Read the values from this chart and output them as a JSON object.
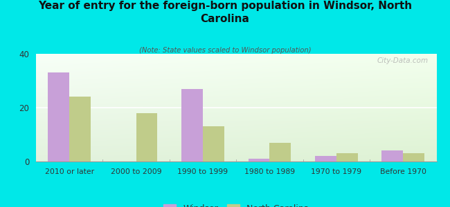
{
  "title": "Year of entry for the foreign-born population in Windsor, North\nCarolina",
  "subtitle": "(Note: State values scaled to Windsor population)",
  "categories": [
    "2010 or later",
    "2000 to 2009",
    "1990 to 1999",
    "1980 to 1989",
    "1970 to 1979",
    "Before 1970"
  ],
  "windsor_values": [
    33,
    0,
    27,
    1,
    2,
    4
  ],
  "nc_values": [
    24,
    18,
    13,
    7,
    3,
    3
  ],
  "windsor_color": "#c8a0d8",
  "nc_color": "#c0cc8a",
  "background_color": "#00e8e8",
  "ylim": [
    0,
    40
  ],
  "yticks": [
    0,
    20,
    40
  ],
  "bar_width": 0.32,
  "legend_windsor": "Windsor",
  "legend_nc": "North Carolina",
  "watermark": "City-Data.com"
}
